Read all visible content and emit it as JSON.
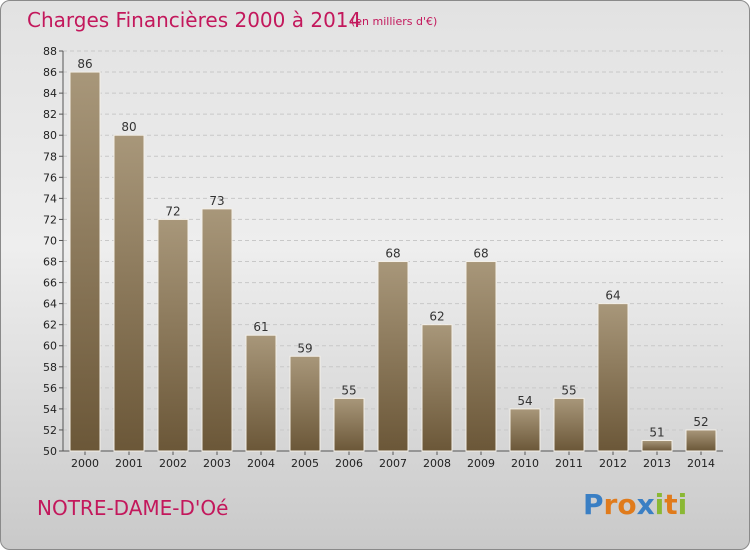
{
  "header": {
    "title": "Charges Financières 2000 à 2014",
    "unit": "(en milliers d'€)"
  },
  "footer": {
    "commune": "NOTRE-DAME-D'Oé",
    "logo": {
      "text": "Proxiti",
      "letters": [
        {
          "ch": "P",
          "color": "#3a7fc4"
        },
        {
          "ch": "r",
          "color": "#e07b1c"
        },
        {
          "ch": "o",
          "color": "#e07b1c"
        },
        {
          "ch": "x",
          "color": "#3a7fc4"
        },
        {
          "ch": "i",
          "color": "#8ab834"
        },
        {
          "ch": "t",
          "color": "#e07b1c"
        },
        {
          "ch": "i",
          "color": "#8ab834"
        }
      ]
    }
  },
  "chart_data": {
    "type": "bar",
    "categories": [
      "2000",
      "2001",
      "2002",
      "2003",
      "2004",
      "2005",
      "2006",
      "2007",
      "2008",
      "2009",
      "2010",
      "2011",
      "2012",
      "2013",
      "2014"
    ],
    "values": [
      86,
      80,
      72,
      73,
      61,
      59,
      55,
      68,
      62,
      68,
      54,
      55,
      64,
      51,
      52
    ],
    "title": "Charges Financières 2000 à 2014",
    "ylim": [
      50,
      88
    ],
    "yticks": [
      50,
      52,
      54,
      56,
      58,
      60,
      62,
      64,
      66,
      68,
      70,
      72,
      74,
      76,
      78,
      80,
      82,
      84,
      86,
      88
    ],
    "grid": true,
    "bar_color_top": "#a8977a",
    "bar_color_bottom": "#6b5738"
  }
}
